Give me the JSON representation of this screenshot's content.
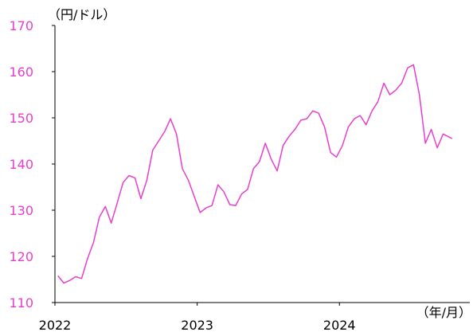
{
  "chart_data": {
    "type": "line",
    "title": "",
    "ylabel": "（円/ドル）",
    "xlabel": "（年/月）",
    "ylim": [
      110,
      170
    ],
    "yticks": [
      110,
      120,
      130,
      140,
      150,
      160,
      170
    ],
    "xlim": [
      "2022-01",
      "2024-12"
    ],
    "xtick_labels": [
      "2022",
      "2023",
      "2024"
    ],
    "xtick_dates": [
      "2022-01",
      "2023-01",
      "2024-01"
    ],
    "grid": false,
    "line_color": "#e83ecf",
    "series": [
      {
        "x": [
          "2022-01",
          "2022-01",
          "2022-02",
          "2022-02",
          "2022-03",
          "2022-03",
          "2022-04",
          "2022-04",
          "2022-05",
          "2022-05",
          "2022-06",
          "2022-06",
          "2022-07",
          "2022-07",
          "2022-08",
          "2022-08",
          "2022-09",
          "2022-09",
          "2022-10",
          "2022-10",
          "2022-11",
          "2022-11",
          "2022-12",
          "2022-12",
          "2023-01",
          "2023-01",
          "2023-02",
          "2023-02",
          "2023-03",
          "2023-03",
          "2023-04",
          "2023-04",
          "2023-05",
          "2023-05",
          "2023-06",
          "2023-06",
          "2023-07",
          "2023-07",
          "2023-08",
          "2023-08",
          "2023-09",
          "2023-09",
          "2023-10",
          "2023-10",
          "2023-11",
          "2023-11",
          "2023-12",
          "2023-12",
          "2024-01",
          "2024-01",
          "2024-02",
          "2024-02",
          "2024-03",
          "2024-03",
          "2024-04",
          "2024-04",
          "2024-05",
          "2024-05",
          "2024-06",
          "2024-06",
          "2024-07",
          "2024-07",
          "2024-08",
          "2024-08",
          "2024-09",
          "2024-09",
          "2024-10"
        ],
        "y": [
          115.8,
          114.2,
          114.8,
          115.6,
          115.2,
          119.5,
          123.0,
          128.5,
          130.8,
          127.2,
          131.5,
          136.0,
          137.5,
          137.0,
          132.5,
          136.5,
          143.0,
          145.0,
          147.0,
          149.8,
          146.5,
          139.0,
          136.5,
          133.0,
          129.5,
          130.5,
          131.0,
          135.5,
          134.0,
          131.2,
          131.0,
          133.5,
          134.5,
          139.0,
          140.5,
          144.5,
          141.0,
          138.5,
          144.0,
          146.0,
          147.5,
          149.5,
          149.8,
          151.5,
          151.0,
          148.0,
          142.5,
          141.5,
          144.0,
          148.0,
          149.8,
          150.5,
          148.5,
          151.5,
          153.5,
          157.5,
          155.0,
          156.0,
          157.5,
          160.8,
          161.5,
          155.0,
          144.5,
          147.5,
          143.5,
          146.5,
          145.5
        ]
      }
    ]
  }
}
